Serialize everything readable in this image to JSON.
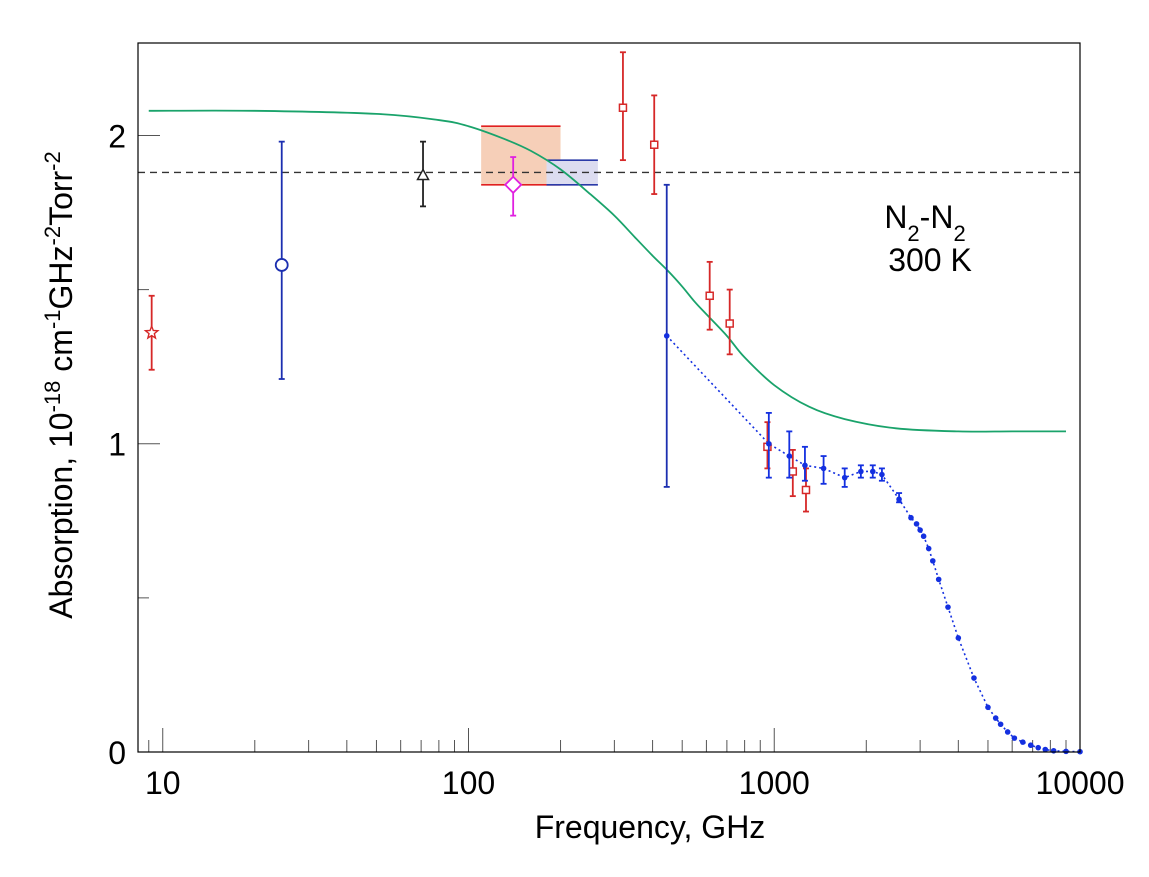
{
  "chart_data": {
    "type": "scatter",
    "xlabel": "Frequency,  GHz",
    "ylabel": "Absorption, 10^-18 cm^-1 GHz^-2 Torr^-2",
    "ylabel_parts": [
      "Absorption, 10",
      "-18",
      " cm",
      "-1",
      "GHz",
      "-2",
      "Torr",
      "-2"
    ],
    "x_scale": "log",
    "xlim": [
      8.3,
      10000
    ],
    "ylim": [
      0,
      2.3
    ],
    "x_ticks": [
      10,
      100,
      1000,
      10000
    ],
    "x_tick_labels": [
      "10",
      "100",
      "1000",
      "10000"
    ],
    "y_ticks": [
      0,
      1,
      2
    ],
    "y_tick_labels": [
      "0",
      "1",
      "2"
    ],
    "grid": false,
    "annotation": {
      "line1_parts": [
        "N",
        "2",
        "-N",
        "2"
      ],
      "line2": "300 K"
    },
    "reference_line": {
      "y": 1.88,
      "style": "dashed",
      "color": "#333333"
    },
    "model_curve": {
      "color": "#1aa36b",
      "x": [
        9,
        20,
        50,
        80,
        100,
        130,
        160,
        200,
        250,
        300,
        350,
        400,
        450,
        500,
        550,
        600,
        700,
        800,
        1000,
        1300,
        1700,
        2500,
        4000,
        6000,
        9000
      ],
      "y": [
        2.08,
        2.08,
        2.07,
        2.05,
        2.03,
        1.99,
        1.95,
        1.89,
        1.81,
        1.74,
        1.67,
        1.61,
        1.56,
        1.51,
        1.46,
        1.42,
        1.35,
        1.28,
        1.19,
        1.12,
        1.08,
        1.05,
        1.04,
        1.04,
        1.04
      ]
    },
    "boxes": [
      {
        "x0": 110,
        "x1": 200,
        "y0": 1.84,
        "y1": 2.03,
        "fill": "#f6cfb8",
        "stroke": "#e02020"
      },
      {
        "x0": 180,
        "x1": 265,
        "y0": 1.84,
        "y1": 1.92,
        "fill": "#dcdcf0",
        "stroke": "#2a3aa8"
      }
    ],
    "series": [
      {
        "marker": "star",
        "color": "#d62828",
        "points": [
          {
            "x": 9.2,
            "y": 1.36,
            "lo": 1.24,
            "hi": 1.48
          }
        ]
      },
      {
        "marker": "circle",
        "color": "#1c2fb0",
        "points": [
          {
            "x": 24.5,
            "y": 1.58,
            "lo": 1.21,
            "hi": 1.98
          }
        ]
      },
      {
        "marker": "triangle",
        "color": "#222222",
        "points": [
          {
            "x": 71,
            "y": 1.87,
            "lo": 1.77,
            "hi": 1.98
          }
        ]
      },
      {
        "marker": "diamond",
        "color": "#e020e0",
        "points": [
          {
            "x": 140,
            "y": 1.84,
            "lo": 1.74,
            "hi": 1.93
          }
        ]
      },
      {
        "marker": "square",
        "color": "#d62828",
        "points": [
          {
            "x": 320,
            "y": 2.09,
            "lo": 1.92,
            "hi": 2.27
          },
          {
            "x": 405,
            "y": 1.97,
            "lo": 1.81,
            "hi": 2.13
          },
          {
            "x": 615,
            "y": 1.48,
            "lo": 1.37,
            "hi": 1.59
          },
          {
            "x": 715,
            "y": 1.39,
            "lo": 1.29,
            "hi": 1.5
          },
          {
            "x": 950,
            "y": 0.99,
            "lo": 0.92,
            "hi": 1.07
          },
          {
            "x": 1150,
            "y": 0.91,
            "lo": 0.83,
            "hi": 0.98
          },
          {
            "x": 1270,
            "y": 0.85,
            "lo": 0.78,
            "hi": 0.92
          }
        ]
      },
      {
        "marker": "big-errorbar",
        "color": "#1c2fb0",
        "points": [
          {
            "x": 445,
            "y": 1.35,
            "lo": 0.86,
            "hi": 1.84
          }
        ]
      },
      {
        "marker": "dot",
        "color": "#1430e0",
        "connect": "dotted",
        "points": [
          {
            "x": 445,
            "y": 1.35
          },
          {
            "x": 960,
            "y": 1.0,
            "lo": 0.89,
            "hi": 1.1
          },
          {
            "x": 1120,
            "y": 0.96,
            "lo": 0.89,
            "hi": 1.04
          },
          {
            "x": 1260,
            "y": 0.93,
            "lo": 0.88,
            "hi": 0.99
          },
          {
            "x": 1450,
            "y": 0.92,
            "lo": 0.87,
            "hi": 0.96
          },
          {
            "x": 1700,
            "y": 0.89,
            "lo": 0.86,
            "hi": 0.92
          },
          {
            "x": 1920,
            "y": 0.91,
            "lo": 0.89,
            "hi": 0.93
          },
          {
            "x": 2100,
            "y": 0.91,
            "lo": 0.89,
            "hi": 0.93
          },
          {
            "x": 2250,
            "y": 0.9,
            "lo": 0.88,
            "hi": 0.92
          },
          {
            "x": 2560,
            "y": 0.82,
            "lo": 0.81,
            "hi": 0.84
          },
          {
            "x": 2800,
            "y": 0.76
          },
          {
            "x": 2920,
            "y": 0.74
          },
          {
            "x": 3000,
            "y": 0.72
          },
          {
            "x": 3080,
            "y": 0.7
          },
          {
            "x": 3200,
            "y": 0.66
          },
          {
            "x": 3300,
            "y": 0.62
          },
          {
            "x": 3450,
            "y": 0.56
          },
          {
            "x": 3700,
            "y": 0.47
          },
          {
            "x": 4000,
            "y": 0.37
          },
          {
            "x": 4500,
            "y": 0.24
          },
          {
            "x": 5000,
            "y": 0.145
          },
          {
            "x": 5300,
            "y": 0.11
          },
          {
            "x": 5500,
            "y": 0.09
          },
          {
            "x": 5800,
            "y": 0.065
          },
          {
            "x": 6100,
            "y": 0.045
          },
          {
            "x": 6500,
            "y": 0.032
          },
          {
            "x": 6900,
            "y": 0.022
          },
          {
            "x": 7300,
            "y": 0.014
          },
          {
            "x": 7700,
            "y": 0.008
          },
          {
            "x": 8200,
            "y": 0.004
          },
          {
            "x": 9000,
            "y": 0.002
          },
          {
            "x": 10000,
            "y": 0.001
          }
        ]
      }
    ]
  }
}
